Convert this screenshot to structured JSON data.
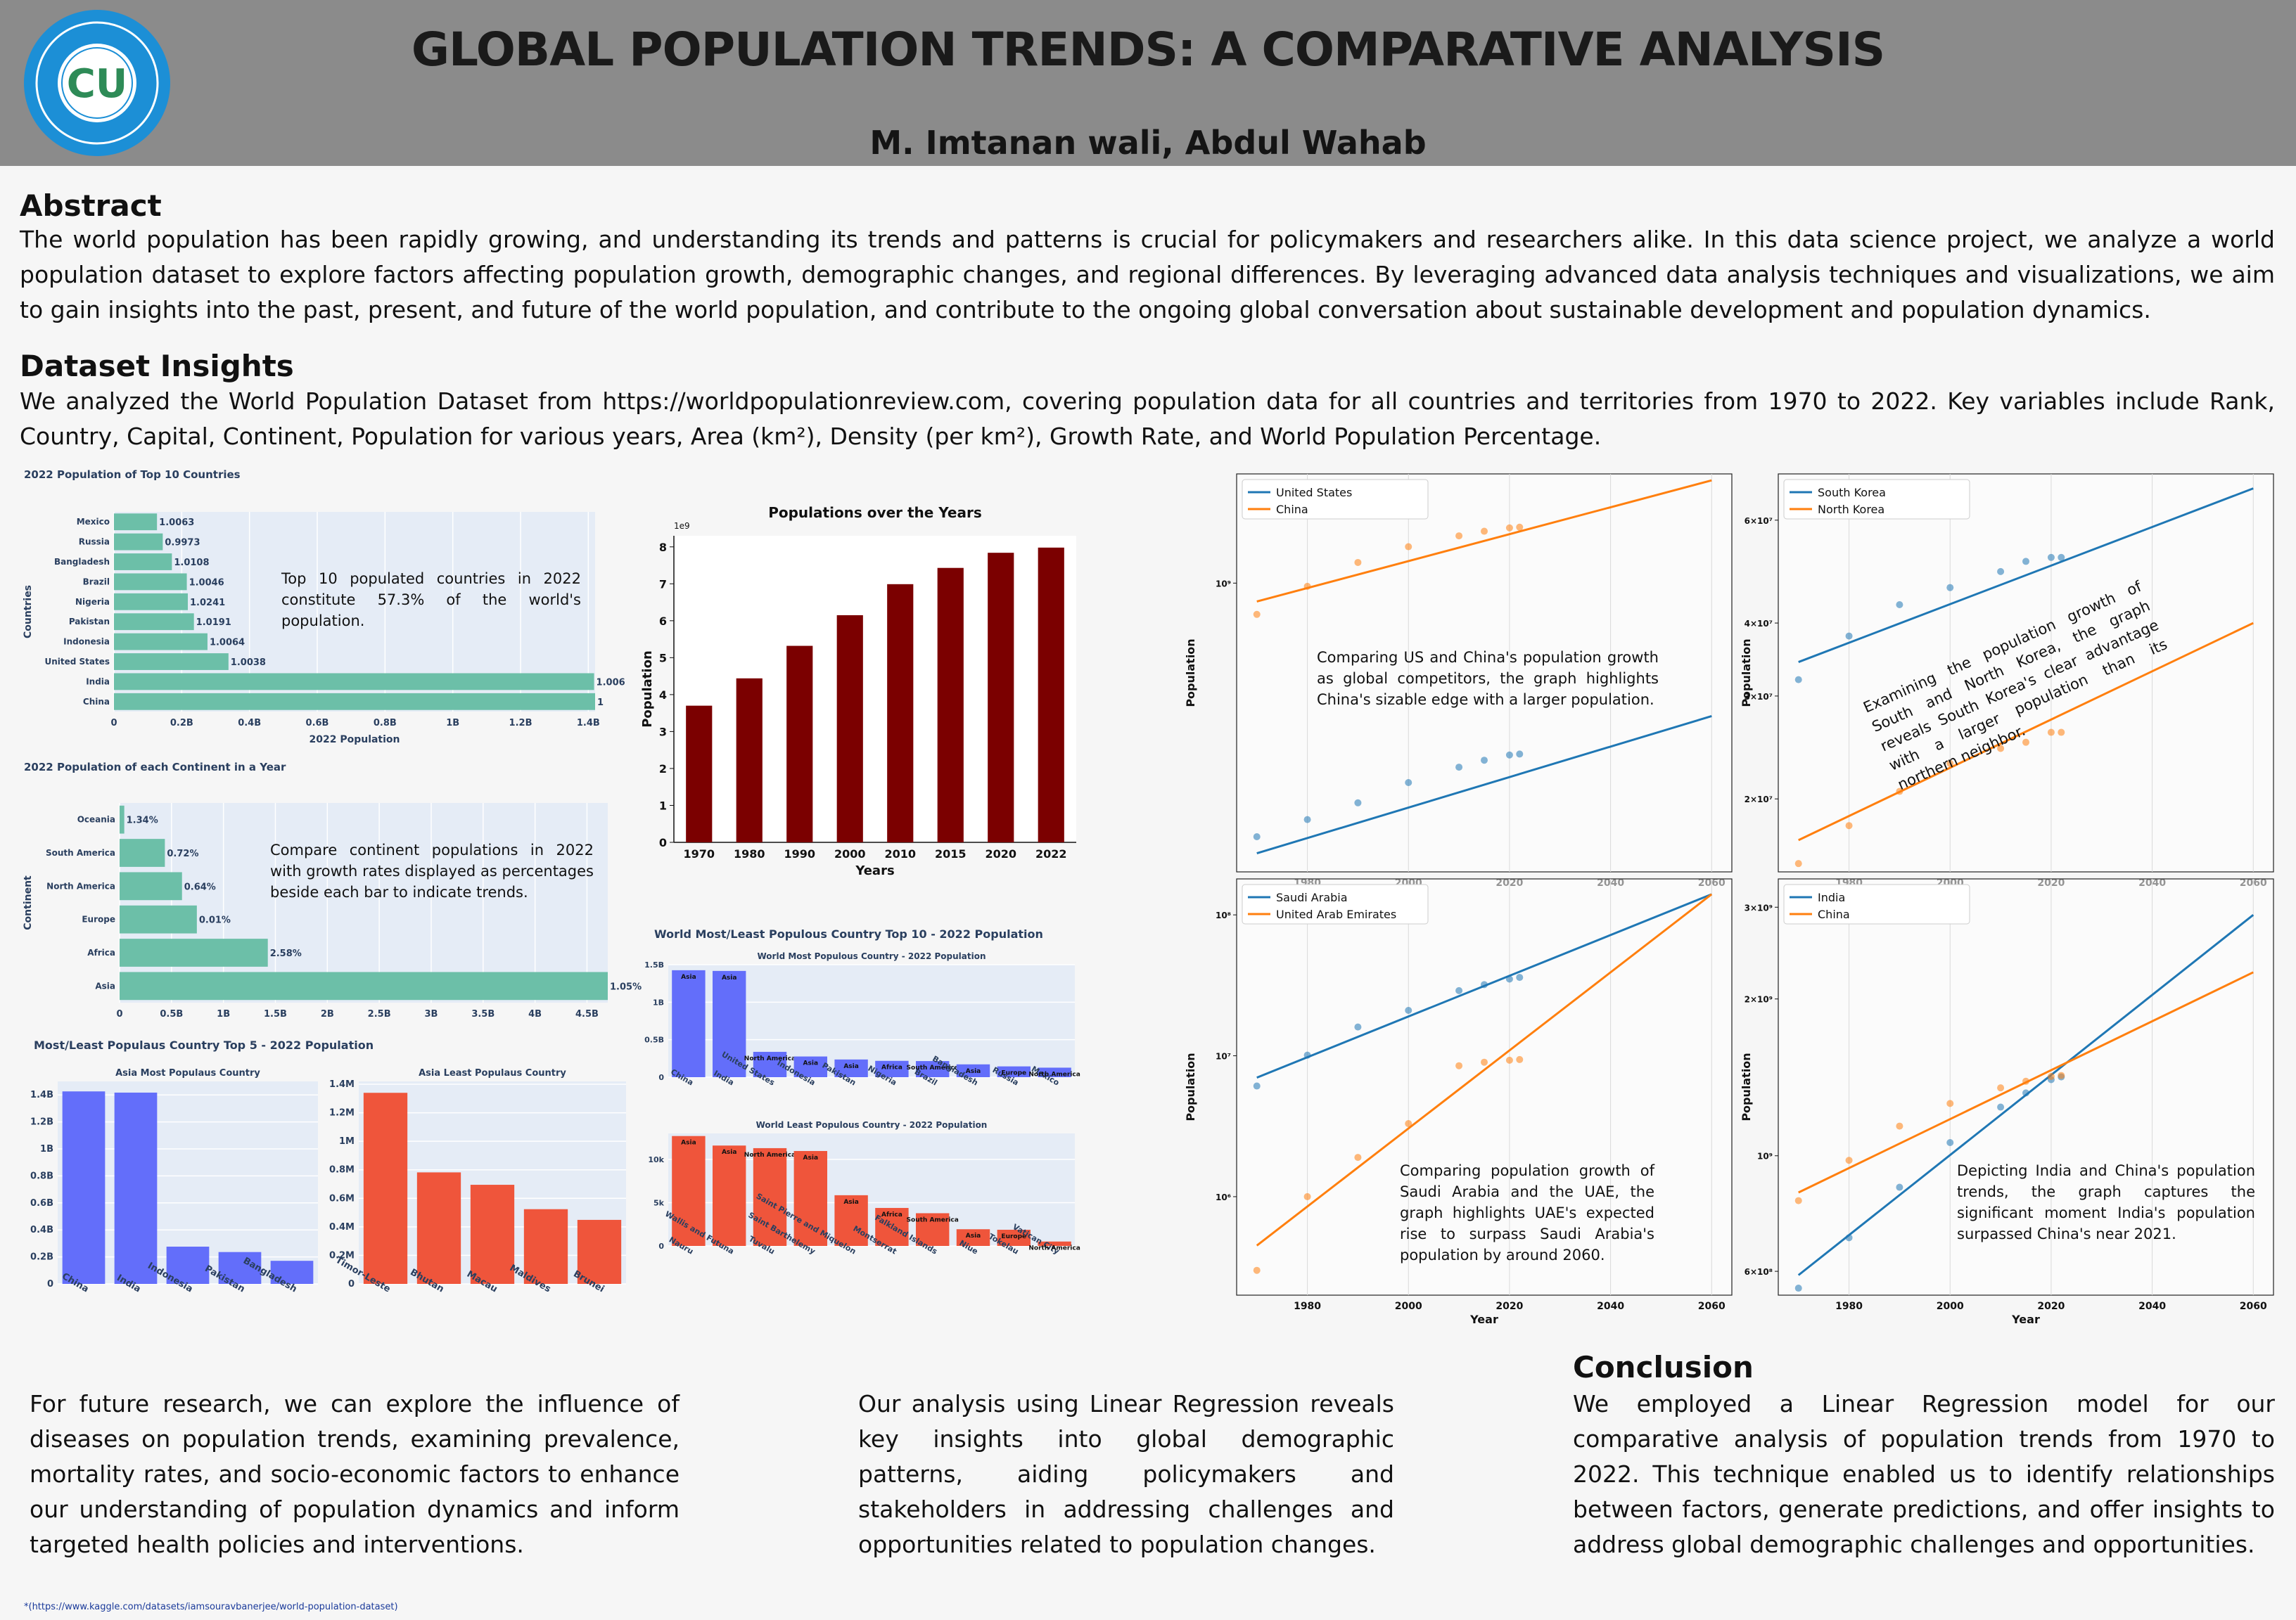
{
  "poster": {
    "title": "GLOBAL POPULATION TRENDS: A COMPARATIVE ANALYSIS",
    "authors": "M. Imtanan wali, Abdul Wahab",
    "logo_text": "CU"
  },
  "abstract": {
    "heading": "Abstract",
    "text": "The world population has been rapidly growing, and understanding its trends and patterns is crucial for policymakers and researchers alike. In this data science project, we analyze a world population dataset to explore factors affecting population growth, demographic changes, and regional differences. By leveraging advanced data analysis techniques and visualizations, we aim to gain insights into the past, present, and future of the world population, and contribute to the ongoing global conversation about sustainable development and population dynamics."
  },
  "dataset": {
    "heading": "Dataset Insights",
    "text": "We analyzed the World Population Dataset from https://worldpopulationreview.com, covering population data for all countries and territories from 1970 to 2022. Key variables include Rank, Country, Capital, Continent, Population for various years, Area (km²), Density (per km²), Growth Rate, and World Population Percentage."
  },
  "future": {
    "text": "For future research, we can explore  the influence of diseases on population trends, examining prevalence, mortality rates, and socio-economic factors to enhance our understanding of population dynamics and inform targeted health policies and interventions."
  },
  "analysis": {
    "text": "Our analysis using Linear Regression reveals key insights into global demographic patterns, aiding policymakers and stakeholders in addressing challenges and opportunities related to population changes."
  },
  "conclusion": {
    "heading": "Conclusion",
    "text": "We employed a Linear Regression model for our comparative analysis of population trends from 1970 to 2022. This technique enabled us to identify relationships between factors, generate predictions, and offer insights to address global demographic challenges and opportunities."
  },
  "footnote": "*(https://www.kaggle.com/datasets/iamsouravbanerjee/world-population-dataset)",
  "colors": {
    "teal": "#6cbfa8",
    "maroon": "#7b0000",
    "blue": "#636efa",
    "red": "#ef553b",
    "line_blue": "#1f77b4",
    "line_orange": "#ff7f0e"
  },
  "chart_data": [
    {
      "id": "top10",
      "type": "bar",
      "orientation": "horizontal",
      "title": "2022 Population of Top 10 Countries",
      "xlabel": "2022 Population",
      "ylabel": "Countries",
      "xlim": [
        0,
        1.42
      ],
      "xticks": [
        0,
        0.2,
        0.4,
        0.6,
        0.8,
        1,
        1.2,
        1.4
      ],
      "xtick_labels": [
        "0",
        "0.2B",
        "0.4B",
        "0.6B",
        "0.8B",
        "1B",
        "1.2B",
        "1.4B"
      ],
      "categories": [
        "Mexico",
        "Russia",
        "Bangladesh",
        "Brazil",
        "Nigeria",
        "Pakistan",
        "Indonesia",
        "United States",
        "India",
        "China"
      ],
      "values": [
        0.127,
        0.144,
        0.171,
        0.215,
        0.218,
        0.236,
        0.276,
        0.338,
        1.417,
        1.426
      ],
      "labels": [
        "1.0063",
        "0.9973",
        "1.0108",
        "1.0046",
        "1.0241",
        "1.0191",
        "1.0064",
        "1.0038",
        "1.006",
        "1"
      ],
      "annotation": "Top 10 populated countries in 2022 constitute 57.3% of the world's population."
    },
    {
      "id": "continent",
      "type": "bar",
      "orientation": "horizontal",
      "title": "2022 Population of each Continent in a Year",
      "ylabel": "Continent",
      "xlim": [
        0,
        4.7
      ],
      "xticks": [
        0,
        0.5,
        1,
        1.5,
        2,
        2.5,
        3,
        3.5,
        4,
        4.5
      ],
      "xtick_labels": [
        "0",
        "0.5B",
        "1B",
        "1.5B",
        "2B",
        "2.5B",
        "3B",
        "3.5B",
        "4B",
        "4.5B"
      ],
      "categories": [
        "Oceania",
        "South America",
        "North America",
        "Europe",
        "Africa",
        "Asia"
      ],
      "values": [
        0.045,
        0.436,
        0.601,
        0.744,
        1.427,
        4.721
      ],
      "labels": [
        "1.34%",
        "0.72%",
        "0.64%",
        "0.01%",
        "2.58%",
        "1.05%"
      ],
      "annotation": "Compare continent populations in 2022 with growth rates displayed as percentages beside each bar to indicate trends."
    },
    {
      "id": "years",
      "type": "bar",
      "title": "Populations over the Years",
      "xlabel": "Years",
      "ylabel": "Population",
      "multiplier": "1e9",
      "ylim": [
        0,
        8.3
      ],
      "yticks": [
        0,
        1,
        2,
        3,
        4,
        5,
        6,
        7,
        8
      ],
      "categories": [
        "1970",
        "1980",
        "1990",
        "2000",
        "2010",
        "2015",
        "2020",
        "2022"
      ],
      "values": [
        3.7,
        4.44,
        5.32,
        6.15,
        6.99,
        7.43,
        7.84,
        7.98
      ]
    },
    {
      "id": "most_least_title",
      "title": "World Most/Least Populous Country Top 10 - 2022 Population"
    },
    {
      "id": "world_most",
      "type": "bar",
      "title": "World Most Populous Country - 2022 Population",
      "ylim": [
        0,
        1.5
      ],
      "yticks": [
        0,
        0.5,
        1,
        1.5
      ],
      "ytick_labels": [
        "0",
        "0.5B",
        "1B",
        "1.5B"
      ],
      "categories": [
        "China",
        "India",
        "United States",
        "Indonesia",
        "Pakistan",
        "Nigeria",
        "Brazil",
        "Bangladesh",
        "Russia",
        "Mexico"
      ],
      "values": [
        1.426,
        1.417,
        0.338,
        0.276,
        0.236,
        0.218,
        0.215,
        0.171,
        0.144,
        0.127
      ],
      "continents": [
        "Asia",
        "Asia",
        "North America",
        "Asia",
        "Asia",
        "Africa",
        "South America",
        "Asia",
        "Europe",
        "North America"
      ]
    },
    {
      "id": "world_least",
      "type": "bar",
      "title": "World Least Populous Country - 2022 Population",
      "ylim": [
        0,
        13
      ],
      "yticks": [
        0,
        5,
        10
      ],
      "ytick_labels": [
        "0",
        "5k",
        "10k"
      ],
      "categories": [
        "Nauru",
        "Wallis and Futuna",
        "Tuvalu",
        "Saint Barthelemy",
        "Saint Pierre and Miquelon",
        "Montserrat",
        "Falkland Islands",
        "Niue",
        "Tokelau",
        "Vatican City"
      ],
      "values": [
        12.7,
        11.6,
        11.3,
        10.97,
        5.86,
        4.39,
        3.78,
        1.93,
        1.87,
        0.51
      ],
      "continents": [
        "Asia",
        "Asia",
        "North America",
        "Asia",
        "Asia",
        "Africa",
        "South America",
        "Asia",
        "Europe",
        "North America"
      ]
    },
    {
      "id": "asia_title",
      "title": "Most/Least Populaus Country Top 5 - 2022 Population"
    },
    {
      "id": "asia_most",
      "type": "bar",
      "title": "Asia Most Populaus Country",
      "ylim": [
        0,
        1.5
      ],
      "yticks": [
        0,
        0.2,
        0.4,
        0.6,
        0.8,
        1,
        1.2,
        1.4
      ],
      "ytick_labels": [
        "0",
        "0.2B",
        "0.4B",
        "0.6B",
        "0.8B",
        "1B",
        "1.2B",
        "1.4B"
      ],
      "categories": [
        "China",
        "India",
        "Indonesia",
        "Pakistan",
        "Bangladesh"
      ],
      "values": [
        1.426,
        1.417,
        0.276,
        0.236,
        0.171
      ]
    },
    {
      "id": "asia_least",
      "type": "bar",
      "title": "Asia Least Populaus Country",
      "ylim": [
        0,
        1.42
      ],
      "yticks": [
        0,
        0.2,
        0.4,
        0.6,
        0.8,
        1,
        1.2,
        1.4
      ],
      "ytick_labels": [
        "0",
        "0.2M",
        "0.4M",
        "0.6M",
        "0.8M",
        "1M",
        "1.2M",
        "1.4M"
      ],
      "categories": [
        "Timor-Leste",
        "Bhutan",
        "Macau",
        "Maldives",
        "Brunei"
      ],
      "values": [
        1.34,
        0.782,
        0.695,
        0.524,
        0.449
      ]
    },
    {
      "id": "us_china",
      "type": "line",
      "xlabel": "",
      "ylabel": "Population",
      "yscale": "log",
      "xlim": [
        1966,
        2064
      ],
      "ylim": [
        160000000.0,
        2000000000.0
      ],
      "xticks": [
        1980,
        2000,
        2020,
        2040,
        2060
      ],
      "yticks": [
        1000000000.0
      ],
      "ytick_labels": [
        "10⁹"
      ],
      "series": [
        {
          "name": "United States",
          "color": "#1f77b4",
          "line": [
            [
              1970,
              180000000.0
            ],
            [
              2060,
              430000000.0
            ]
          ],
          "points": [
            [
              1970,
              200000000.0
            ],
            [
              1980,
              223000000.0
            ],
            [
              1990,
              248000000.0
            ],
            [
              2000,
              282000000.0
            ],
            [
              2010,
              311000000.0
            ],
            [
              2015,
              325000000.0
            ],
            [
              2020,
              336000000.0
            ],
            [
              2022,
              338000000.0
            ]
          ]
        },
        {
          "name": "China",
          "color": "#ff7f0e",
          "line": [
            [
              1970,
              890000000.0
            ],
            [
              2060,
              1920000000.0
            ]
          ],
          "points": [
            [
              1970,
              820000000.0
            ],
            [
              1980,
              980000000.0
            ],
            [
              1990,
              1140000000.0
            ],
            [
              2000,
              1260000000.0
            ],
            [
              2010,
              1350000000.0
            ],
            [
              2015,
              1390000000.0
            ],
            [
              2020,
              1420000000.0
            ],
            [
              2022,
              1426000000.0
            ]
          ]
        }
      ],
      "annotation": "Comparing US and China's population growth as global competitors, the graph highlights China's sizable edge with a larger population."
    },
    {
      "id": "korea",
      "type": "line",
      "ylabel": "Population",
      "yscale": "log",
      "xlim": [
        1966,
        2064
      ],
      "ylim": [
        15000000.0,
        72000000.0
      ],
      "xticks": [
        1980,
        2000,
        2020,
        2040,
        2060
      ],
      "yticks": [
        20000000.0,
        30000000.0,
        40000000.0,
        60000000.0
      ],
      "ytick_labels": [
        "2×10⁷",
        "3×10⁷",
        "4×10⁷",
        "6×10⁷"
      ],
      "series": [
        {
          "name": "South Korea",
          "color": "#1f77b4",
          "line": [
            [
              1970,
              34300000.0
            ],
            [
              2060,
              68000000.0
            ]
          ],
          "points": [
            [
              1970,
              32000000.0
            ],
            [
              1980,
              38000000.0
            ],
            [
              1990,
              43000000.0
            ],
            [
              2000,
              46000000.0
            ],
            [
              2010,
              49000000.0
            ],
            [
              2015,
              51000000.0
            ],
            [
              2020,
              51800000.0
            ],
            [
              2022,
              51800000.0
            ]
          ]
        },
        {
          "name": "North Korea",
          "color": "#ff7f0e",
          "line": [
            [
              1970,
              17000000.0
            ],
            [
              2060,
              40000000.0
            ]
          ],
          "points": [
            [
              1970,
              15500000.0
            ],
            [
              1980,
              18000000.0
            ],
            [
              1990,
              20600000.0
            ],
            [
              2000,
              23000000.0
            ],
            [
              2010,
              24400000.0
            ],
            [
              2015,
              25000000.0
            ],
            [
              2020,
              26000000.0
            ],
            [
              2022,
              26000000.0
            ]
          ]
        }
      ],
      "annotation": "Examining the population growth of South and North Korea, the graph reveals South Korea's clear advantage with a larger population than its northern neighbor."
    },
    {
      "id": "saudi_uae",
      "type": "line",
      "xlabel": "Year",
      "ylabel": "Population",
      "yscale": "log",
      "xlim": [
        1966,
        2064
      ],
      "ylim": [
        200000.0,
        180000000.0
      ],
      "xticks": [
        1980,
        2000,
        2020,
        2040,
        2060
      ],
      "yticks": [
        1000000.0,
        10000000.0,
        100000000.0
      ],
      "ytick_labels": [
        "10⁶",
        "10⁷",
        "10⁸"
      ],
      "series": [
        {
          "name": "Saudi Arabia",
          "color": "#1f77b4",
          "line": [
            [
              1970,
              7000000.0
            ],
            [
              2060,
              140000000.0
            ]
          ],
          "points": [
            [
              1970,
              6100000.0
            ],
            [
              1980,
              10100000.0
            ],
            [
              1990,
              16000000.0
            ],
            [
              2000,
              21000000.0
            ],
            [
              2010,
              29000000.0
            ],
            [
              2015,
              32000000.0
            ],
            [
              2020,
              35000000.0
            ],
            [
              2022,
              36000000.0
            ]
          ]
        },
        {
          "name": "United Arab Emirates",
          "color": "#ff7f0e",
          "line": [
            [
              1970,
              450000.0
            ],
            [
              2060,
              140000000.0
            ]
          ],
          "points": [
            [
              1970,
              300000.0
            ],
            [
              1980,
              1000000.0
            ],
            [
              1990,
              1900000.0
            ],
            [
              2000,
              3300000.0
            ],
            [
              2010,
              8500000.0
            ],
            [
              2015,
              9000000.0
            ],
            [
              2020,
              9300000.0
            ],
            [
              2022,
              9400000.0
            ]
          ]
        }
      ],
      "annotation": "Comparing population growth of Saudi Arabia and the UAE, the graph highlights UAE's expected rise to surpass Saudi Arabia's population by around 2060."
    },
    {
      "id": "india_china",
      "type": "line",
      "xlabel": "Year",
      "ylabel": "Population",
      "yscale": "log",
      "xlim": [
        1966,
        2064
      ],
      "ylim": [
        540000000.0,
        3400000000.0
      ],
      "xticks": [
        1980,
        2000,
        2020,
        2040,
        2060
      ],
      "yticks": [
        600000000.0,
        1000000000.0,
        2000000000.0,
        3000000000.0
      ],
      "ytick_labels": [
        "6×10⁸",
        "10⁹",
        "2×10⁹",
        "3×10⁹"
      ],
      "series": [
        {
          "name": "India",
          "color": "#1f77b4",
          "line": [
            [
              1970,
              590000000.0
            ],
            [
              2060,
              2900000000.0
            ]
          ],
          "points": [
            [
              1970,
              557000000.0
            ],
            [
              1980,
              696000000.0
            ],
            [
              1990,
              870000000.0
            ],
            [
              2000,
              1060000000.0
            ],
            [
              2010,
              1240000000.0
            ],
            [
              2015,
              1320000000.0
            ],
            [
              2020,
              1400000000.0
            ],
            [
              2022,
              1417000000.0
            ]
          ]
        },
        {
          "name": "China",
          "color": "#ff7f0e",
          "line": [
            [
              1970,
              850000000.0
            ],
            [
              2060,
              2250000000.0
            ]
          ],
          "points": [
            [
              1970,
              820000000.0
            ],
            [
              1980,
              980000000.0
            ],
            [
              1990,
              1140000000.0
            ],
            [
              2000,
              1260000000.0
            ],
            [
              2010,
              1350000000.0
            ],
            [
              2015,
              1390000000.0
            ],
            [
              2020,
              1420000000.0
            ],
            [
              2022,
              1426000000.0
            ]
          ]
        }
      ],
      "annotation": "Depicting India and China's population trends, the graph captures the significant moment India's population surpassed China's near 2021."
    }
  ]
}
